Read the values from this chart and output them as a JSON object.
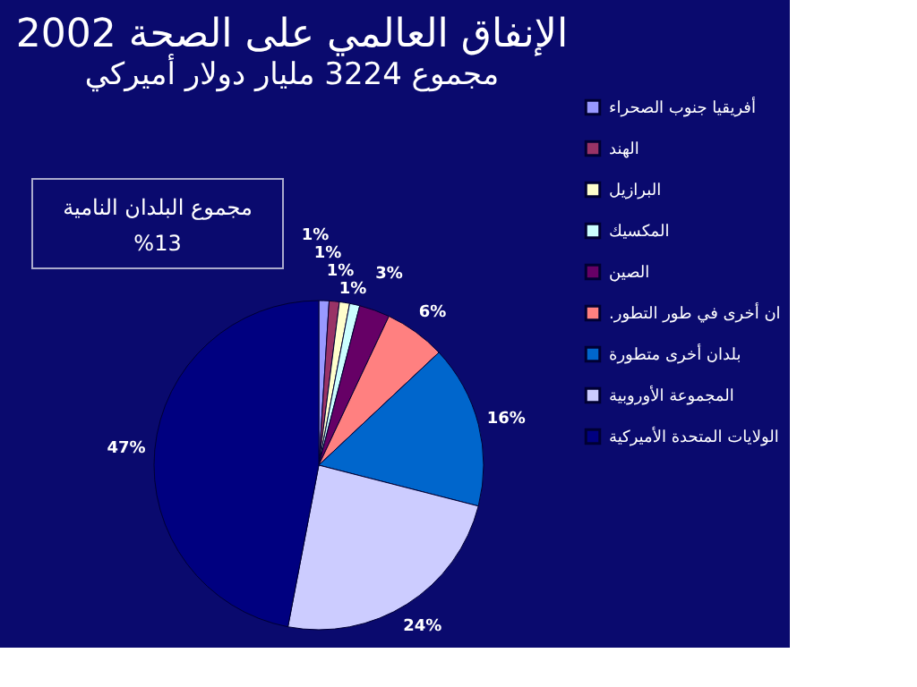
{
  "chart_data": {
    "type": "pie",
    "title": "الإنفاق العالمي على الصحة 2002",
    "subtitle": "مجموع 3224 مليار دولار أميركي",
    "categories": [
      "أفريقيا جنوب الصحراء",
      "الهند",
      "البرازيل",
      "المكسيك",
      "الصين",
      ".ان أخرى في طور التطور",
      "بلدان أخرى متطورة",
      "المجموعة الأوروبية",
      "الولايات المتحدة الأميركية"
    ],
    "values": [
      1,
      1,
      1,
      1,
      3,
      6,
      16,
      24,
      47
    ],
    "colors": [
      "#9999ff",
      "#993366",
      "#ffffcc",
      "#ccffff",
      "#660066",
      "#ff8080",
      "#0066cc",
      "#ccccff",
      "#000080"
    ],
    "value_labels": [
      "1%",
      "1%",
      "1%",
      "1%",
      "3%",
      "6%",
      "16%",
      "24%",
      "47%"
    ],
    "annotations": [
      "مجموع البلدان النامية\n%13"
    ],
    "legend": "right"
  }
}
